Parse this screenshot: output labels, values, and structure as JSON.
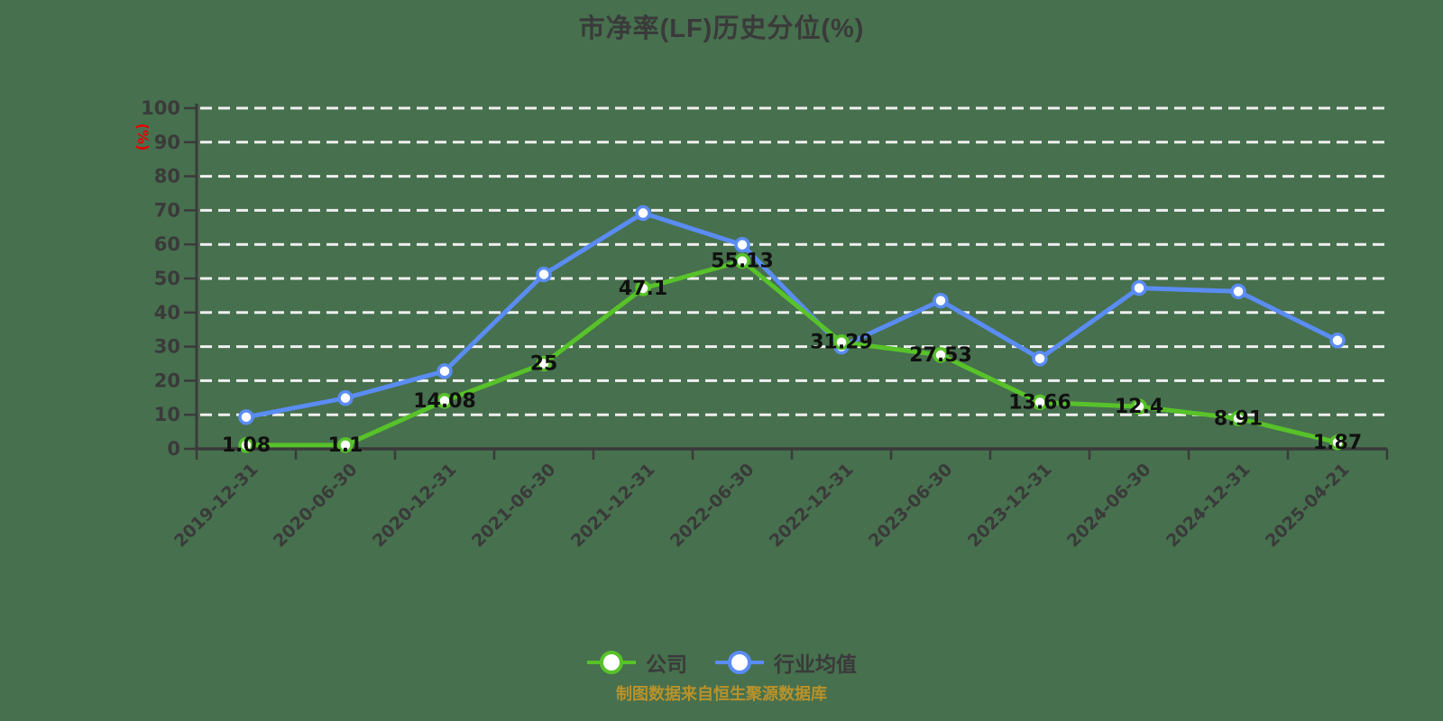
{
  "title": "市净率(LF)历史分位(%)",
  "footer_note": "制图数据来自恒生聚源数据库",
  "y_axis_unit": "(%)",
  "colors": {
    "background": "#47704E",
    "text": "#3A3A3A",
    "grid": "#F0F0F0",
    "company": "#57C229",
    "industry": "#5A8CF4",
    "data_label": "#101010",
    "unit_label": "#E60000",
    "footer": "#B8922B"
  },
  "chart_data": {
    "type": "line",
    "title": "市净率(LF)历史分位(%)",
    "categories": [
      "2019-12-31",
      "2020-06-30",
      "2020-12-31",
      "2021-06-30",
      "2021-12-31",
      "2022-06-30",
      "2022-12-31",
      "2023-06-30",
      "2023-12-31",
      "2024-06-30",
      "2024-12-31",
      "2025-04-21"
    ],
    "series": [
      {
        "name": "公司",
        "color": "#57C229",
        "values": [
          1.08,
          1.1,
          14.08,
          25,
          47.1,
          55.13,
          31.29,
          27.53,
          13.66,
          12.4,
          8.91,
          1.87
        ],
        "point_labels": [
          "1.08",
          "1.1",
          "14.08",
          "25",
          "47.1",
          "55.13",
          "31.29",
          "27.53",
          "13.66",
          "12.4",
          "8.91",
          "1.87"
        ],
        "labels_visible": true
      },
      {
        "name": "行业均值",
        "color": "#5A8CF4",
        "values": [
          9.3,
          14.9,
          22.8,
          51.2,
          69.2,
          59.9,
          30,
          43.5,
          26.5,
          47.2,
          46.2,
          31.8
        ],
        "labels_visible": false
      }
    ],
    "ylabel": "(%)",
    "ylim": [
      0,
      100
    ],
    "y_tick_step": 10,
    "grid": "horizontal-dashed",
    "x_label_rotation": -45,
    "legend_position": "bottom"
  }
}
